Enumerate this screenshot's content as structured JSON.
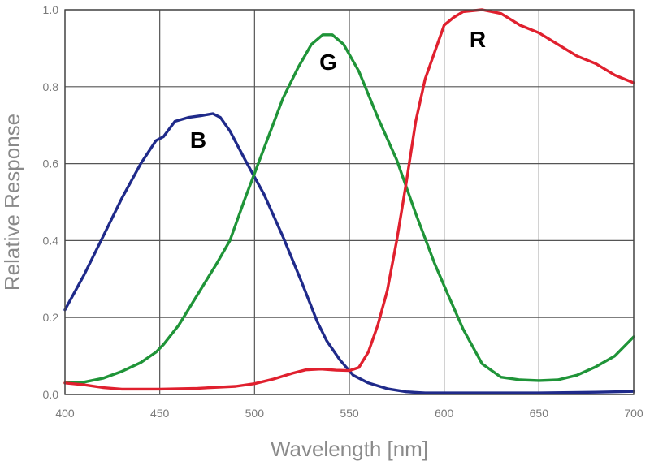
{
  "chart_data": {
    "type": "line",
    "title": "",
    "xlabel": "Wavelength [nm]",
    "ylabel": "Relative Response",
    "xlim": [
      400,
      700
    ],
    "ylim": [
      0.0,
      1.0
    ],
    "x_ticks": [
      400,
      450,
      500,
      550,
      600,
      650,
      700
    ],
    "x_tick_labels": [
      "400",
      "450",
      "500",
      "550",
      "600",
      "650",
      "700"
    ],
    "y_ticks": [
      0.0,
      0.2,
      0.4,
      0.6,
      0.8,
      1.0
    ],
    "y_tick_labels": [
      "0.0",
      "0.2",
      "0.4",
      "0.6",
      "0.8",
      "1.0"
    ],
    "grid": true,
    "series": [
      {
        "name": "B",
        "color": "#1f2a8a",
        "points": [
          [
            400,
            0.22
          ],
          [
            410,
            0.31
          ],
          [
            420,
            0.41
          ],
          [
            430,
            0.51
          ],
          [
            440,
            0.6
          ],
          [
            448,
            0.66
          ],
          [
            452,
            0.67
          ],
          [
            458,
            0.71
          ],
          [
            465,
            0.72
          ],
          [
            472,
            0.725
          ],
          [
            478,
            0.73
          ],
          [
            482,
            0.72
          ],
          [
            487,
            0.685
          ],
          [
            495,
            0.61
          ],
          [
            505,
            0.52
          ],
          [
            515,
            0.41
          ],
          [
            525,
            0.29
          ],
          [
            533,
            0.19
          ],
          [
            538,
            0.14
          ],
          [
            545,
            0.09
          ],
          [
            552,
            0.05
          ],
          [
            560,
            0.03
          ],
          [
            570,
            0.015
          ],
          [
            580,
            0.007
          ],
          [
            590,
            0.004
          ],
          [
            600,
            0.004
          ],
          [
            620,
            0.004
          ],
          [
            650,
            0.004
          ],
          [
            680,
            0.006
          ],
          [
            700,
            0.008
          ]
        ]
      },
      {
        "name": "G",
        "color": "#1f9438",
        "points": [
          [
            400,
            0.03
          ],
          [
            410,
            0.032
          ],
          [
            420,
            0.042
          ],
          [
            430,
            0.06
          ],
          [
            440,
            0.083
          ],
          [
            448,
            0.11
          ],
          [
            452,
            0.13
          ],
          [
            460,
            0.18
          ],
          [
            470,
            0.26
          ],
          [
            480,
            0.34
          ],
          [
            487,
            0.4
          ],
          [
            495,
            0.51
          ],
          [
            505,
            0.64
          ],
          [
            515,
            0.77
          ],
          [
            523,
            0.85
          ],
          [
            530,
            0.91
          ],
          [
            536,
            0.935
          ],
          [
            541,
            0.935
          ],
          [
            547,
            0.91
          ],
          [
            555,
            0.84
          ],
          [
            565,
            0.72
          ],
          [
            575,
            0.61
          ],
          [
            585,
            0.47
          ],
          [
            595,
            0.34
          ],
          [
            602,
            0.26
          ],
          [
            610,
            0.17
          ],
          [
            620,
            0.08
          ],
          [
            630,
            0.045
          ],
          [
            640,
            0.038
          ],
          [
            650,
            0.036
          ],
          [
            660,
            0.038
          ],
          [
            670,
            0.05
          ],
          [
            680,
            0.072
          ],
          [
            690,
            0.1
          ],
          [
            700,
            0.15
          ]
        ]
      },
      {
        "name": "R",
        "color": "#e0202e",
        "points": [
          [
            400,
            0.03
          ],
          [
            410,
            0.025
          ],
          [
            420,
            0.018
          ],
          [
            430,
            0.014
          ],
          [
            450,
            0.014
          ],
          [
            470,
            0.016
          ],
          [
            490,
            0.021
          ],
          [
            500,
            0.028
          ],
          [
            510,
            0.04
          ],
          [
            520,
            0.055
          ],
          [
            527,
            0.064
          ],
          [
            535,
            0.066
          ],
          [
            543,
            0.063
          ],
          [
            550,
            0.062
          ],
          [
            555,
            0.07
          ],
          [
            560,
            0.11
          ],
          [
            565,
            0.18
          ],
          [
            570,
            0.27
          ],
          [
            575,
            0.4
          ],
          [
            580,
            0.55
          ],
          [
            585,
            0.71
          ],
          [
            590,
            0.82
          ],
          [
            595,
            0.89
          ],
          [
            600,
            0.96
          ],
          [
            605,
            0.98
          ],
          [
            610,
            0.995
          ],
          [
            620,
            1.0
          ],
          [
            630,
            0.99
          ],
          [
            640,
            0.96
          ],
          [
            650,
            0.94
          ],
          [
            660,
            0.91
          ],
          [
            670,
            0.88
          ],
          [
            680,
            0.86
          ],
          [
            690,
            0.83
          ],
          [
            700,
            0.81
          ]
        ]
      }
    ]
  }
}
